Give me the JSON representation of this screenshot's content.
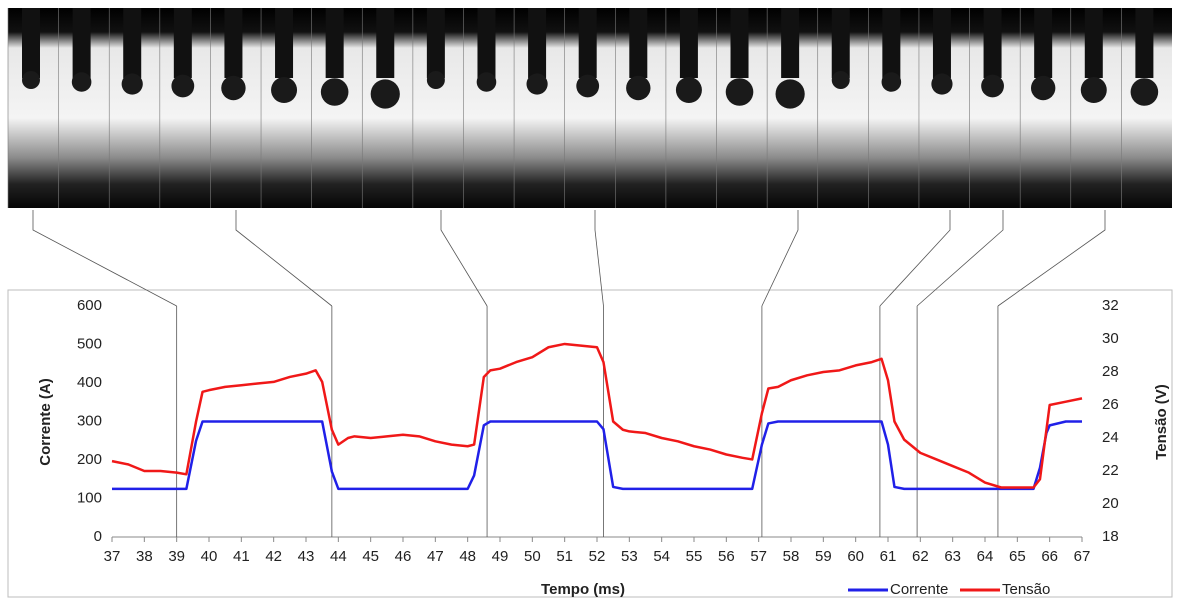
{
  "chart_data": {
    "type": "line",
    "x": [
      37,
      37.5,
      38,
      38.5,
      39,
      39.3,
      39.6,
      39.8,
      40,
      40.5,
      41,
      41.5,
      42,
      42.5,
      43,
      43.3,
      43.5,
      43.8,
      44,
      44.3,
      44.5,
      45,
      45.5,
      46,
      46.5,
      47,
      47.5,
      48,
      48.2,
      48.5,
      48.7,
      49,
      49.5,
      50,
      50.5,
      51,
      51.5,
      52,
      52.2,
      52.5,
      52.8,
      53,
      53.5,
      54,
      54.5,
      55,
      55.5,
      56,
      56.5,
      56.8,
      57.1,
      57.3,
      57.6,
      58,
      58.5,
      59,
      59.5,
      60,
      60.5,
      60.8,
      61,
      61.2,
      61.5,
      62,
      62.5,
      63,
      63.5,
      64,
      64.5,
      65,
      65.5,
      65.7,
      65.9,
      66,
      66.5,
      67
    ],
    "series": [
      {
        "name": "Corrente",
        "color": "#2020e8",
        "values": [
          125,
          125,
          125,
          125,
          125,
          125,
          250,
          300,
          300,
          300,
          300,
          300,
          300,
          300,
          300,
          300,
          300,
          170,
          125,
          125,
          125,
          125,
          125,
          125,
          125,
          125,
          125,
          125,
          160,
          290,
          300,
          300,
          300,
          300,
          300,
          300,
          300,
          300,
          280,
          130,
          125,
          125,
          125,
          125,
          125,
          125,
          125,
          125,
          125,
          125,
          240,
          295,
          300,
          300,
          300,
          300,
          300,
          300,
          300,
          300,
          240,
          130,
          125,
          125,
          125,
          125,
          125,
          125,
          125,
          125,
          125,
          180,
          270,
          290,
          300,
          300
        ]
      },
      {
        "name": "Tensão",
        "color": "#f01818",
        "axis": "y2",
        "values": [
          22.6,
          22.4,
          22.0,
          22.0,
          21.9,
          21.8,
          25.0,
          26.8,
          26.9,
          27.1,
          27.2,
          27.3,
          27.4,
          27.7,
          27.9,
          28.1,
          27.4,
          24.5,
          23.6,
          24.0,
          24.1,
          24.0,
          24.1,
          24.2,
          24.1,
          23.8,
          23.6,
          23.5,
          23.6,
          27.7,
          28.1,
          28.2,
          28.6,
          28.9,
          29.5,
          29.7,
          29.6,
          29.5,
          28.6,
          25.0,
          24.5,
          24.4,
          24.3,
          24.0,
          23.8,
          23.5,
          23.3,
          23.0,
          22.8,
          22.7,
          25.5,
          27.0,
          27.1,
          27.5,
          27.8,
          28.0,
          28.1,
          28.4,
          28.6,
          28.8,
          27.5,
          25.0,
          23.9,
          23.1,
          22.7,
          22.3,
          21.9,
          21.3,
          21.0,
          21.0,
          21.0,
          21.5,
          24.5,
          26.0,
          26.2,
          26.4
        ]
      }
    ],
    "xlabel": "Tempo (ms)",
    "ylabel": "Corrente (A)",
    "y2label": "Tensão (V)",
    "xlim": [
      37,
      67
    ],
    "xticks": [
      37,
      38,
      39,
      40,
      41,
      42,
      43,
      44,
      45,
      46,
      47,
      48,
      49,
      50,
      51,
      52,
      53,
      54,
      55,
      56,
      57,
      58,
      59,
      60,
      61,
      62,
      63,
      64,
      65,
      66,
      67
    ],
    "ylim": [
      0,
      600
    ],
    "yticks": [
      0,
      100,
      200,
      300,
      400,
      500,
      600
    ],
    "y2lim": [
      18,
      32
    ],
    "y2ticks": [
      18,
      20,
      22,
      24,
      26,
      28,
      30,
      32
    ],
    "frame_times": [
      39.0,
      43.8,
      48.6,
      52.2,
      57.1,
      60.75,
      61.9,
      64.4
    ],
    "grid": false,
    "legend": "bottom-right"
  }
}
